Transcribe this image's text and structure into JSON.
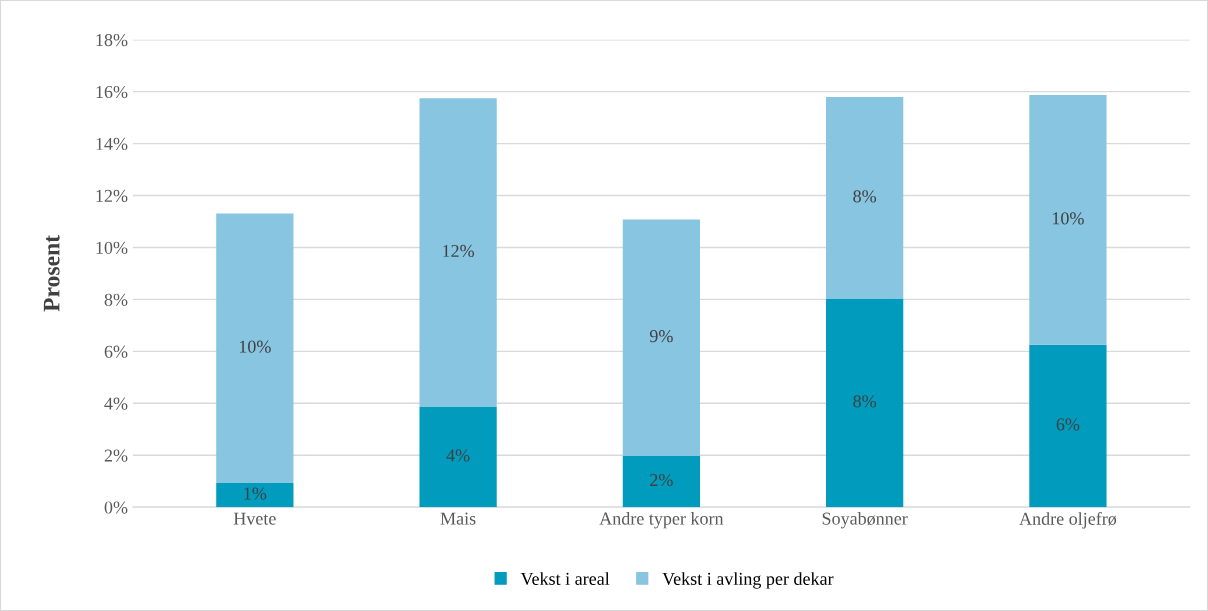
{
  "chart_data": {
    "type": "bar",
    "stacked": true,
    "ylabel": "Prosent",
    "categories": [
      "Hvete",
      "Mais",
      "Andre typer korn",
      "Soyabønner",
      "Andre oljefrø"
    ],
    "series": [
      {
        "name": "Vekst i areal",
        "color": "#009bbd",
        "values": [
          0.93,
          3.86,
          1.97,
          8.03,
          6.25
        ],
        "value_labels": [
          "1%",
          "4%",
          "2%",
          "8%",
          "6%"
        ]
      },
      {
        "name": "Vekst i avling per dekar",
        "color": "#87c5e0",
        "values": [
          10.38,
          11.89,
          9.11,
          7.76,
          9.62
        ],
        "value_labels": [
          "10%",
          "12%",
          "9%",
          "8%",
          "10%"
        ]
      }
    ],
    "ylim": [
      0,
      18
    ],
    "yticks": [
      {
        "value": 0,
        "label": "0%"
      },
      {
        "value": 2,
        "label": "2%"
      },
      {
        "value": 4,
        "label": "4%"
      },
      {
        "value": 6,
        "label": "6%"
      },
      {
        "value": 8,
        "label": "8%"
      },
      {
        "value": 10,
        "label": "10%"
      },
      {
        "value": 12,
        "label": "12%"
      },
      {
        "value": 14,
        "label": "14%"
      },
      {
        "value": 16,
        "label": "16%"
      },
      {
        "value": 18,
        "label": "18%"
      }
    ],
    "grid": "y",
    "legend": "bottom"
  }
}
